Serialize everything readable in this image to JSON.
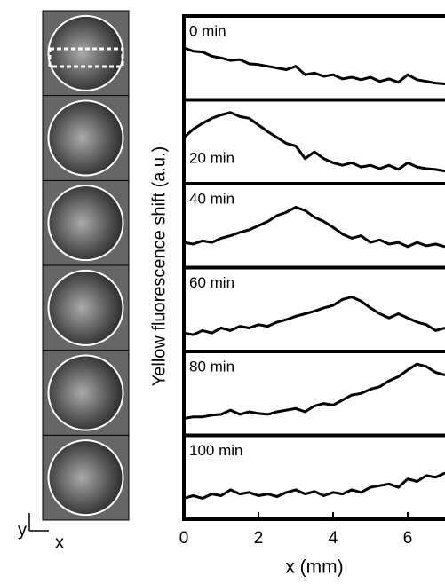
{
  "chart_data": {
    "type": "line",
    "xlabel": "x (mm)",
    "ylabel": "Yellow fluorescence shift (a.u.)",
    "x": [
      0,
      0.25,
      0.5,
      0.75,
      1,
      1.25,
      1.5,
      1.75,
      2,
      2.25,
      2.5,
      2.75,
      3,
      3.25,
      3.5,
      3.75,
      4,
      4.25,
      4.5,
      4.75,
      5,
      5.25,
      5.5,
      5.75,
      6,
      6.25,
      6.5,
      6.75,
      7
    ],
    "xlim": [
      0,
      7
    ],
    "xticks": [
      0,
      2,
      4,
      6
    ],
    "ylim": [
      0,
      1
    ],
    "color": "#000000",
    "orientation": {
      "y": "y",
      "x": "x"
    },
    "series": [
      {
        "name": "0 min",
        "values": [
          0.62,
          0.58,
          0.57,
          0.52,
          0.5,
          0.47,
          0.48,
          0.43,
          0.42,
          0.4,
          0.38,
          0.36,
          0.4,
          0.3,
          0.32,
          0.28,
          0.3,
          0.25,
          0.27,
          0.24,
          0.27,
          0.22,
          0.25,
          0.21,
          0.3,
          0.24,
          0.22,
          0.2,
          0.19
        ]
      },
      {
        "name": "20 min",
        "values": [
          0.55,
          0.65,
          0.72,
          0.78,
          0.82,
          0.85,
          0.8,
          0.78,
          0.7,
          0.62,
          0.55,
          0.48,
          0.45,
          0.3,
          0.38,
          0.3,
          0.25,
          0.22,
          0.25,
          0.2,
          0.22,
          0.18,
          0.22,
          0.17,
          0.25,
          0.2,
          0.18,
          0.17,
          0.15
        ]
      },
      {
        "name": "40 min",
        "values": [
          0.3,
          0.28,
          0.32,
          0.3,
          0.35,
          0.38,
          0.42,
          0.45,
          0.5,
          0.55,
          0.62,
          0.66,
          0.72,
          0.68,
          0.6,
          0.55,
          0.48,
          0.4,
          0.35,
          0.38,
          0.3,
          0.33,
          0.28,
          0.3,
          0.25,
          0.3,
          0.26,
          0.28,
          0.25
        ]
      },
      {
        "name": "60 min",
        "values": [
          0.22,
          0.2,
          0.25,
          0.22,
          0.28,
          0.25,
          0.3,
          0.28,
          0.32,
          0.3,
          0.35,
          0.38,
          0.42,
          0.45,
          0.48,
          0.52,
          0.55,
          0.62,
          0.65,
          0.6,
          0.52,
          0.45,
          0.4,
          0.45,
          0.4,
          0.35,
          0.32,
          0.25,
          0.28
        ]
      },
      {
        "name": "80 min",
        "values": [
          0.2,
          0.22,
          0.22,
          0.24,
          0.25,
          0.3,
          0.25,
          0.28,
          0.26,
          0.25,
          0.28,
          0.3,
          0.32,
          0.28,
          0.35,
          0.38,
          0.36,
          0.42,
          0.48,
          0.5,
          0.55,
          0.58,
          0.65,
          0.7,
          0.78,
          0.85,
          0.82,
          0.75,
          0.72
        ]
      },
      {
        "name": "100 min",
        "values": [
          0.25,
          0.28,
          0.25,
          0.3,
          0.28,
          0.35,
          0.3,
          0.32,
          0.28,
          0.3,
          0.27,
          0.32,
          0.35,
          0.3,
          0.33,
          0.28,
          0.32,
          0.3,
          0.35,
          0.32,
          0.38,
          0.4,
          0.42,
          0.38,
          0.48,
          0.45,
          0.52,
          0.5,
          0.55
        ]
      }
    ]
  }
}
